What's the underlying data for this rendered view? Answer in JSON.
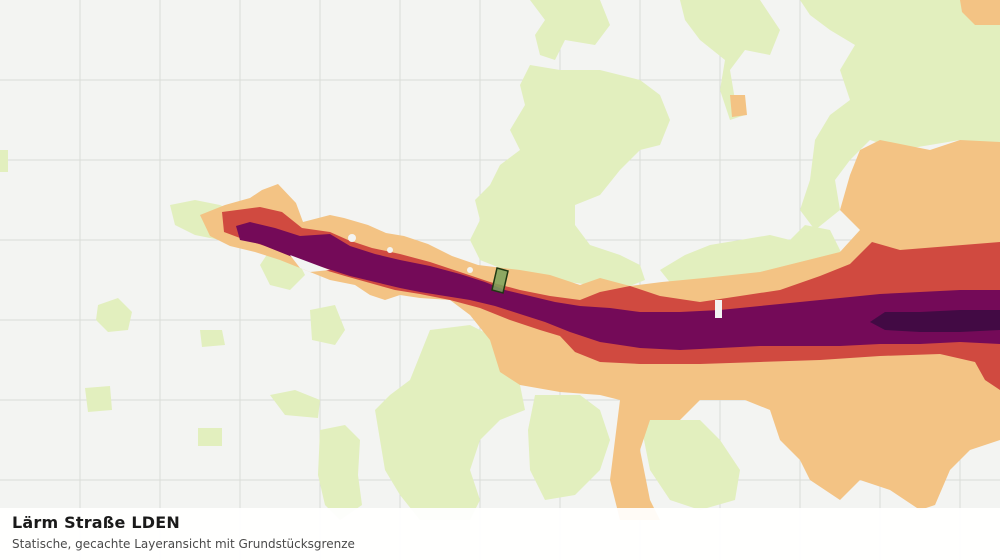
{
  "layer": {
    "title": "Lärm Straße LDEN",
    "subtitle": "Statische, gecachte Layeransicht mit Grundstücksgrenze"
  },
  "colors": {
    "background": "#f3f4f2",
    "grid": "#d9dcd8",
    "band_lowest": "#e2efbe",
    "band_low": "#f3c384",
    "band_mid": "#d04a40",
    "band_high": "#740a58",
    "band_highest": "#420a44",
    "parcel_fill": "#7aa35c",
    "parcel_outline": "#1f3a12"
  }
}
